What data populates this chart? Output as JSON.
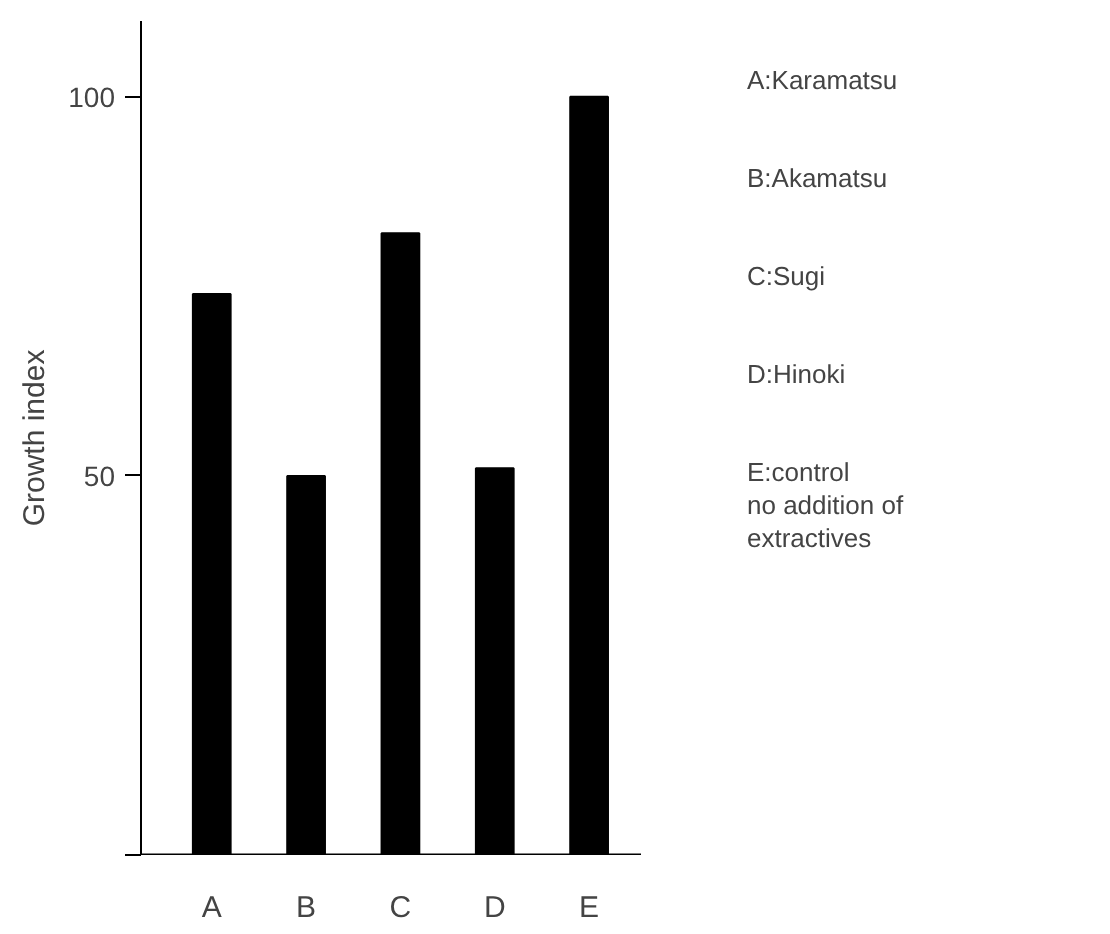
{
  "chart_data": {
    "type": "bar",
    "ylabel": "Growth index",
    "categories": [
      "A",
      "B",
      "C",
      "D",
      "E"
    ],
    "values": [
      74,
      50,
      82,
      51,
      100
    ],
    "color": "#000000",
    "ylim": [
      0,
      110
    ],
    "yticks": [
      {
        "value": 0,
        "label": null
      },
      50,
      100
    ],
    "grid": false,
    "annotations": [
      "A:Karamatsu",
      "B:Akamatsu",
      "C:Sugi",
      "D:Hinoki",
      "E:control\n   no addition of\n   extractives"
    ]
  }
}
